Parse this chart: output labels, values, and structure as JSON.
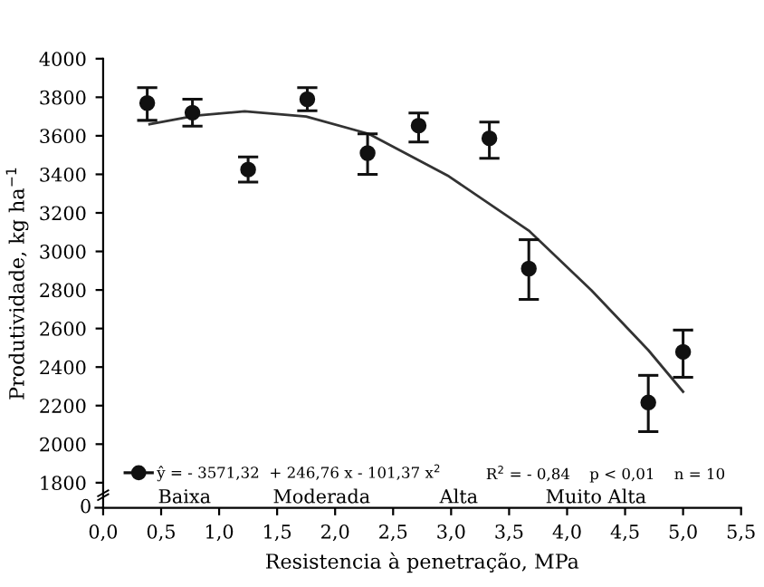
{
  "chart_data": {
    "type": "scatter",
    "xlabel": "Resistencia à penetração, MPa",
    "ylabel": "Produtividade, kg ha$^{−1}$",
    "x": [
      0.38,
      0.77,
      1.25,
      1.76,
      2.28,
      2.72,
      3.33,
      3.67,
      4.7,
      5.0
    ],
    "series": [
      {
        "name": "ŷ = - 3571,32  + 246,76 x - 101,37 x$^{2}$",
        "type": "scatter",
        "color": "#111111",
        "marker": "circle",
        "values": [
          3770,
          3720,
          3425,
          3790,
          3510,
          3653,
          3587,
          2911,
          2216,
          2479
        ],
        "errors": [
          [
            3680,
            3850
          ],
          [
            3650,
            3790
          ],
          [
            3360,
            3490
          ],
          [
            3730,
            3850
          ],
          [
            3400,
            3610
          ],
          [
            3568,
            3718
          ],
          [
            3483,
            3671
          ],
          [
            2751,
            3061
          ],
          [
            2065,
            2357
          ],
          [
            2347,
            2592
          ]
        ]
      },
      {
        "type": "line",
        "color": "#333333",
        "line_style": "solid",
        "x": [
          0.4,
          0.8,
          1.22,
          1.75,
          2.29,
          2.98,
          3.67,
          4.21,
          4.7,
          5.0
        ],
        "values": [
          3660,
          3705,
          3727,
          3700,
          3610,
          3390,
          3108,
          2798,
          2488,
          2272
        ]
      }
    ],
    "xlim": [
      0,
      5.5
    ],
    "xticks": [
      {
        "value": 0,
        "label": "0,0"
      },
      {
        "value": 0.5,
        "label": "0,5"
      },
      {
        "value": 1,
        "label": "1,0"
      },
      {
        "value": 1.5,
        "label": "1,5"
      },
      {
        "value": 2,
        "label": "2,0"
      },
      {
        "value": 2.5,
        "label": "2,5"
      },
      {
        "value": 3,
        "label": "3,0"
      },
      {
        "value": 3.5,
        "label": "3,5"
      },
      {
        "value": 4,
        "label": "4,0"
      },
      {
        "value": 4.5,
        "label": "4,5"
      },
      {
        "value": 5,
        "label": "5,0"
      },
      {
        "value": 5.5,
        "label": "5,5"
      }
    ],
    "ylim": [
      1670,
      4000
    ],
    "yticks": [
      1800,
      2000,
      2200,
      2400,
      2600,
      2800,
      3000,
      3200,
      3400,
      3600,
      3800,
      4000
    ],
    "annotations": [
      "R$^{2}$ = - 0,84    p < 0,01    n = 10",
      "0",
      "Baixa",
      "Moderada",
      "Alta",
      "Muito Alta"
    ],
    "legend": "bottom left",
    "grid": false
  }
}
